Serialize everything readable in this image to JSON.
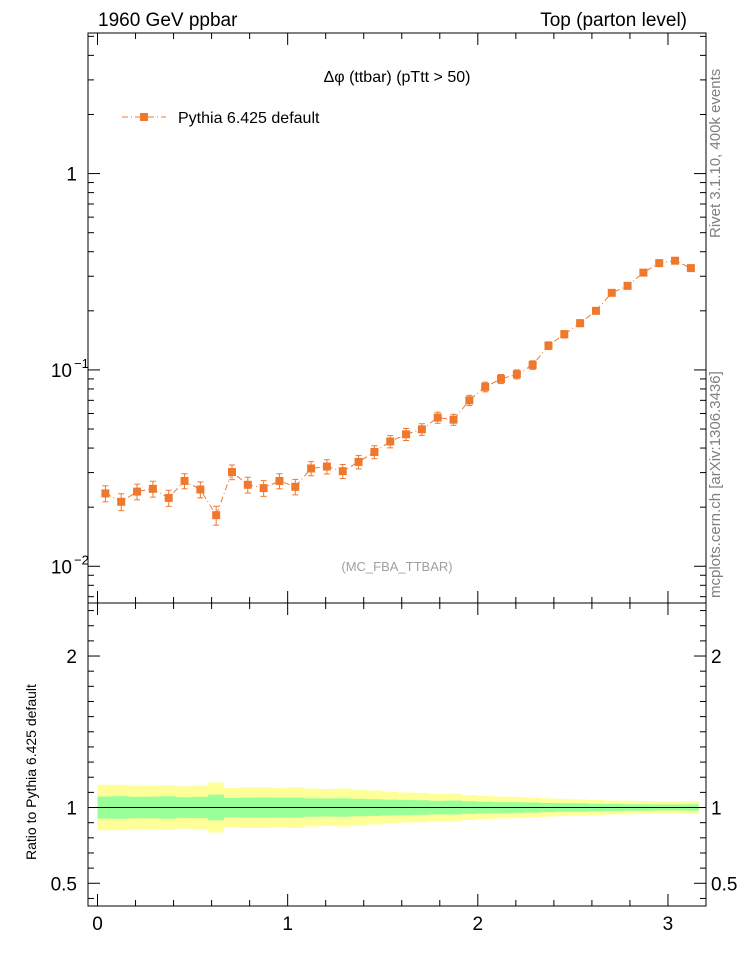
{
  "header": {
    "left": "1960 GeV ppbar",
    "right": "Top (parton level)"
  },
  "side_labels": {
    "rivet": "Rivet 3.1.10,  400k events",
    "mcplots": "mcplots.cern.ch [arXiv:1306.3436]"
  },
  "colors": {
    "series": "#f0782d",
    "band_outer": "#ffff99",
    "band_inner": "#99ff99",
    "ref_line": "#000000"
  },
  "chart_data": [
    {
      "type": "scatter",
      "title": "Δφ (ttbar) (pTtt > 50)",
      "analysis_tag": "(MC_FBA_TTBAR)",
      "xlabel": "",
      "ylabel": "",
      "xlim": [
        -0.05,
        3.2
      ],
      "ylim": [
        0.0065,
        5.2
      ],
      "yscale": "log",
      "x_ticks": [
        0,
        1,
        2,
        3
      ],
      "y_ticks": [
        {
          "value": 0.01,
          "base": "10",
          "exp": "−2"
        },
        {
          "value": 0.1,
          "base": "10",
          "exp": "−1"
        },
        {
          "value": 1,
          "base": "1",
          "exp": ""
        }
      ],
      "legend": {
        "position": "top-left"
      },
      "series": [
        {
          "name": "Pythia 6.425 default",
          "marker": "square",
          "line": "dash-dot",
          "x": [
            0.0415,
            0.1247,
            0.2079,
            0.2912,
            0.3744,
            0.4576,
            0.5408,
            0.624,
            0.7072,
            0.7904,
            0.8737,
            0.9569,
            1.0401,
            1.1233,
            1.2065,
            1.2897,
            1.373,
            1.4562,
            1.5394,
            1.6226,
            1.7058,
            1.789,
            1.8722,
            1.9555,
            2.0387,
            2.1219,
            2.2051,
            2.2883,
            2.3715,
            2.4548,
            2.538,
            2.6212,
            2.7044,
            2.7876,
            2.8708,
            2.954,
            3.0373,
            3.1205
          ],
          "y": [
            0.0235,
            0.0213,
            0.024,
            0.0248,
            0.0223,
            0.0272,
            0.0246,
            0.0182,
            0.0302,
            0.026,
            0.025,
            0.0272,
            0.0254,
            0.0315,
            0.0322,
            0.0305,
            0.034,
            0.0382,
            0.0432,
            0.047,
            0.0498,
            0.0572,
            0.0558,
            0.07,
            0.082,
            0.09,
            0.095,
            0.106,
            0.133,
            0.152,
            0.173,
            0.2,
            0.247,
            0.268,
            0.313,
            0.35,
            0.36,
            0.33
          ],
          "yerr": [
            0.0022,
            0.0021,
            0.0022,
            0.0023,
            0.0021,
            0.0024,
            0.0023,
            0.002,
            0.0026,
            0.0024,
            0.0023,
            0.0024,
            0.0023,
            0.0026,
            0.0027,
            0.0025,
            0.0027,
            0.0029,
            0.0031,
            0.0033,
            0.0034,
            0.0037,
            0.0036,
            0.0042,
            0.0046,
            0.0048,
            0.005,
            0.0053,
            0.006,
            0.0065,
            0.007,
            0.0076,
            0.0085,
            0.009,
            0.0096,
            0.0102,
            0.0104,
            0.01
          ]
        }
      ]
    },
    {
      "type": "area",
      "xlabel": "",
      "ylabel": "Ratio to Pythia 6.425 default",
      "xlim": [
        -0.05,
        3.2
      ],
      "ylim": [
        0.35,
        2.35
      ],
      "x_ticks": [
        0,
        1,
        2,
        3
      ],
      "y_ticks": [
        0.5,
        1,
        2
      ],
      "y_tick_labels": [
        "0.5",
        "1",
        "2"
      ],
      "reference": 1,
      "series": [
        {
          "name": "",
          "band": "outer",
          "rel_err": [
            0.15,
            0.15,
            0.145,
            0.145,
            0.148,
            0.14,
            0.145,
            0.165,
            0.13,
            0.135,
            0.135,
            0.13,
            0.135,
            0.125,
            0.122,
            0.125,
            0.118,
            0.112,
            0.105,
            0.1,
            0.097,
            0.09,
            0.092,
            0.082,
            0.076,
            0.072,
            0.07,
            0.066,
            0.06,
            0.057,
            0.054,
            0.05,
            0.046,
            0.045,
            0.043,
            0.041,
            0.041,
            0.042
          ]
        },
        {
          "name": "",
          "band": "inner",
          "rel_err": [
            0.073,
            0.075,
            0.071,
            0.072,
            0.074,
            0.068,
            0.07,
            0.085,
            0.064,
            0.066,
            0.067,
            0.065,
            0.066,
            0.061,
            0.06,
            0.061,
            0.058,
            0.055,
            0.052,
            0.05,
            0.048,
            0.045,
            0.046,
            0.041,
            0.038,
            0.036,
            0.035,
            0.033,
            0.03,
            0.028,
            0.027,
            0.025,
            0.023,
            0.022,
            0.021,
            0.02,
            0.02,
            0.021
          ]
        }
      ]
    }
  ]
}
